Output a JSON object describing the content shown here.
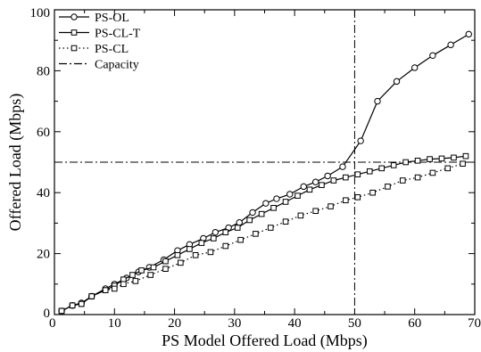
{
  "chart_data": {
    "type": "line",
    "title": "",
    "xlabel": "PS Model Offered Load (Mbps)",
    "ylabel": "Offered Load (Mbps)",
    "xlim": [
      0,
      70
    ],
    "ylim": [
      0,
      100
    ],
    "xticks": [
      0,
      10,
      20,
      30,
      40,
      50,
      60,
      70
    ],
    "yticks": [
      0,
      20,
      40,
      60,
      80,
      100
    ],
    "grid": false,
    "legend_position": "top-left",
    "series": [
      {
        "name": "PS-OL",
        "line_style": "solid",
        "marker": "circle",
        "points": [
          [
            1.2,
            1.2
          ],
          [
            3,
            3
          ],
          [
            4.5,
            3.8
          ],
          [
            6.2,
            6
          ],
          [
            8.5,
            8.5
          ],
          [
            10,
            10
          ],
          [
            12,
            12
          ],
          [
            14,
            14
          ],
          [
            15.8,
            15.5
          ],
          [
            18.2,
            18
          ],
          [
            20.5,
            21
          ],
          [
            22.5,
            23
          ],
          [
            24.8,
            25
          ],
          [
            26.8,
            27
          ],
          [
            29,
            28.5
          ],
          [
            30.8,
            30.2
          ],
          [
            33,
            33.5
          ],
          [
            35.2,
            36.5
          ],
          [
            37,
            38
          ],
          [
            39.2,
            39.5
          ],
          [
            41.5,
            42
          ],
          [
            43.5,
            43.5
          ],
          [
            45.5,
            45.5
          ],
          [
            48,
            48.5
          ],
          [
            51,
            57
          ],
          [
            53.8,
            70
          ],
          [
            57,
            76.5
          ],
          [
            60,
            81
          ],
          [
            63,
            85
          ],
          [
            66,
            88.5
          ],
          [
            69,
            92
          ]
        ]
      },
      {
        "name": "PS-CL-T",
        "line_style": "solid",
        "marker": "square",
        "points": [
          [
            1.2,
            1.2
          ],
          [
            3,
            3
          ],
          [
            4.5,
            3.5
          ],
          [
            6.2,
            6
          ],
          [
            8.5,
            8
          ],
          [
            10,
            9.5
          ],
          [
            11.5,
            11.5
          ],
          [
            13,
            13
          ],
          [
            14.5,
            14.5
          ],
          [
            16.5,
            15.5
          ],
          [
            18.5,
            17.5
          ],
          [
            20.5,
            19.5
          ],
          [
            22.5,
            21.5
          ],
          [
            24.5,
            23.5
          ],
          [
            26.5,
            25
          ],
          [
            28.5,
            27
          ],
          [
            30.5,
            28.5
          ],
          [
            32.5,
            31
          ],
          [
            34.5,
            33
          ],
          [
            36.5,
            35
          ],
          [
            38.5,
            37
          ],
          [
            40.5,
            39
          ],
          [
            42.5,
            41
          ],
          [
            44.5,
            42.5
          ],
          [
            46.5,
            44
          ],
          [
            48.5,
            45
          ],
          [
            50.5,
            46
          ],
          [
            52.5,
            47
          ],
          [
            54.5,
            48
          ],
          [
            56.5,
            49
          ],
          [
            58.5,
            50
          ],
          [
            60.5,
            50.5
          ],
          [
            62.5,
            51
          ],
          [
            64.5,
            51.2
          ],
          [
            66.5,
            51.5
          ],
          [
            68.5,
            52
          ]
        ]
      },
      {
        "name": "PS-CL",
        "line_style": "dotted",
        "marker": "square",
        "points": [
          [
            1.2,
            1.2
          ],
          [
            3,
            3
          ],
          [
            4.5,
            3.5
          ],
          [
            6.2,
            6
          ],
          [
            8.5,
            8
          ],
          [
            10,
            8.5
          ],
          [
            11.5,
            10
          ],
          [
            13.5,
            11
          ],
          [
            16,
            13
          ],
          [
            18.5,
            15
          ],
          [
            21,
            17
          ],
          [
            23.5,
            19.5
          ],
          [
            26,
            20.5
          ],
          [
            28.5,
            22.5
          ],
          [
            31,
            24.5
          ],
          [
            33.5,
            26.5
          ],
          [
            36,
            28.5
          ],
          [
            38.5,
            30.5
          ],
          [
            41,
            32.5
          ],
          [
            43.5,
            34
          ],
          [
            46,
            35.5
          ],
          [
            48.5,
            37.5
          ],
          [
            50.5,
            38.5
          ],
          [
            53,
            40
          ],
          [
            55.5,
            42
          ],
          [
            58,
            44
          ],
          [
            60.5,
            45
          ],
          [
            63,
            46.5
          ],
          [
            65.5,
            48
          ],
          [
            68,
            49.5
          ]
        ]
      },
      {
        "name": "Capacity",
        "line_style": "dash-dot",
        "marker": "none",
        "reference_lines": [
          {
            "orientation": "horizontal",
            "value": 50
          },
          {
            "orientation": "vertical",
            "value": 50
          }
        ]
      }
    ]
  }
}
